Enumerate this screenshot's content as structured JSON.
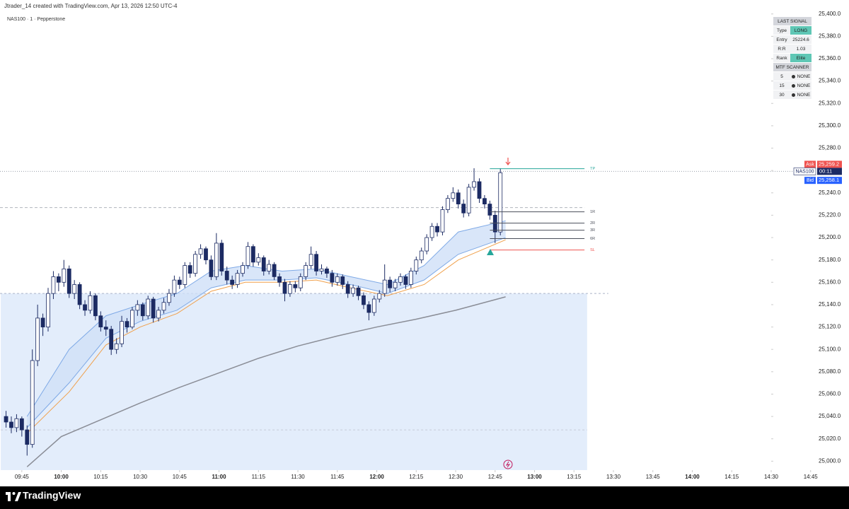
{
  "header": {
    "attribution": "Jtrader_14 created with TradingView.com, Apr 13, 2026 12:50 UTC-4",
    "symbol": "NAS100 · 1 · Pepperstone"
  },
  "chart_data": {
    "type": "candlestick",
    "x": [
      579,
      581,
      583,
      585,
      587,
      589,
      591,
      593,
      595,
      597,
      599,
      601,
      603,
      605,
      607,
      609,
      611,
      613,
      615,
      617,
      619,
      621,
      623,
      625,
      627,
      629,
      631,
      633,
      635,
      637,
      639,
      641,
      643,
      645,
      647,
      649,
      651,
      653,
      655,
      657,
      659,
      661,
      663,
      665,
      667,
      669,
      671,
      673,
      675,
      677,
      679,
      681,
      683,
      685,
      687,
      689,
      691,
      693,
      695,
      697,
      699,
      701,
      703,
      705,
      707,
      709,
      711,
      713,
      715,
      717,
      719,
      721,
      723,
      725,
      727,
      729,
      731,
      733,
      735,
      737,
      739,
      741,
      743,
      745,
      747,
      749,
      751,
      753,
      755,
      757,
      759,
      761,
      763,
      765,
      767
    ],
    "ohlc": [
      [
        25040,
        25045,
        25030,
        25035
      ],
      [
        25035,
        25040,
        25025,
        25030
      ],
      [
        25030,
        25042,
        25026,
        25038
      ],
      [
        25038,
        25040,
        25022,
        25028
      ],
      [
        25028,
        25032,
        25005,
        25015
      ],
      [
        25015,
        25100,
        25012,
        25090
      ],
      [
        25090,
        25140,
        25085,
        25128
      ],
      [
        25128,
        25132,
        25112,
        25120
      ],
      [
        25120,
        25155,
        25116,
        25150
      ],
      [
        25150,
        25170,
        25145,
        25165
      ],
      [
        25165,
        25168,
        25152,
        25160
      ],
      [
        25160,
        25180,
        25156,
        25172
      ],
      [
        25172,
        25175,
        25146,
        25150
      ],
      [
        25150,
        25162,
        25145,
        25158
      ],
      [
        25158,
        25160,
        25136,
        25140
      ],
      [
        25140,
        25144,
        25130,
        25135
      ],
      [
        25135,
        25152,
        25132,
        25148
      ],
      [
        25148,
        25150,
        25126,
        25130
      ],
      [
        25130,
        25134,
        25116,
        25120
      ],
      [
        25120,
        25126,
        25112,
        25118
      ],
      [
        25118,
        25121,
        25095,
        25100
      ],
      [
        25100,
        25110,
        25096,
        25105
      ],
      [
        25105,
        25130,
        25102,
        25125
      ],
      [
        25125,
        25128,
        25115,
        25120
      ],
      [
        25120,
        25138,
        25118,
        25135
      ],
      [
        25135,
        25144,
        25130,
        25140
      ],
      [
        25140,
        25142,
        25126,
        25130
      ],
      [
        25130,
        25148,
        25127,
        25145
      ],
      [
        25145,
        25147,
        25124,
        25128
      ],
      [
        25128,
        25138,
        25125,
        25135
      ],
      [
        25135,
        25146,
        25132,
        25142
      ],
      [
        25142,
        25154,
        25139,
        25150
      ],
      [
        25150,
        25166,
        25147,
        25162
      ],
      [
        25162,
        25165,
        25154,
        25158
      ],
      [
        25158,
        25178,
        25155,
        25175
      ],
      [
        25175,
        25178,
        25164,
        25168
      ],
      [
        25168,
        25188,
        25165,
        25185
      ],
      [
        25185,
        25194,
        25181,
        25190
      ],
      [
        25190,
        25192,
        25176,
        25180
      ],
      [
        25180,
        25184,
        25162,
        25165
      ],
      [
        25165,
        25204,
        25162,
        25195
      ],
      [
        25195,
        25198,
        25166,
        25170
      ],
      [
        25170,
        25174,
        25158,
        25162
      ],
      [
        25162,
        25166,
        25154,
        25158
      ],
      [
        25158,
        25171,
        25155,
        25168
      ],
      [
        25168,
        25178,
        25165,
        25175
      ],
      [
        25175,
        25196,
        25172,
        25192
      ],
      [
        25192,
        25194,
        25174,
        25178
      ],
      [
        25178,
        25186,
        25175,
        25182
      ],
      [
        25182,
        25184,
        25166,
        25170
      ],
      [
        25170,
        25180,
        25167,
        25176
      ],
      [
        25176,
        25178,
        25162,
        25165
      ],
      [
        25165,
        25168,
        25156,
        25160
      ],
      [
        25160,
        25163,
        25143,
        25150
      ],
      [
        25150,
        25161,
        25147,
        25158
      ],
      [
        25158,
        25161,
        25151,
        25155
      ],
      [
        25155,
        25168,
        25152,
        25165
      ],
      [
        25165,
        25178,
        25162,
        25175
      ],
      [
        25175,
        25192,
        25172,
        25185
      ],
      [
        25185,
        25188,
        25166,
        25170
      ],
      [
        25170,
        25176,
        25167,
        25172
      ],
      [
        25172,
        25174,
        25164,
        25168
      ],
      [
        25168,
        25171,
        25156,
        25160
      ],
      [
        25160,
        25168,
        25157,
        25165
      ],
      [
        25165,
        25167,
        25154,
        25158
      ],
      [
        25158,
        25161,
        25146,
        25150
      ],
      [
        25150,
        25158,
        25147,
        25155
      ],
      [
        25155,
        25157,
        25144,
        25148
      ],
      [
        25148,
        25151,
        25136,
        25140
      ],
      [
        25140,
        25143,
        25126,
        25133
      ],
      [
        25133,
        25148,
        25130,
        25145
      ],
      [
        25145,
        25153,
        25142,
        25150
      ],
      [
        25150,
        25176,
        25147,
        25162
      ],
      [
        25162,
        25165,
        25151,
        25155
      ],
      [
        25155,
        25163,
        25152,
        25160
      ],
      [
        25160,
        25168,
        25157,
        25165
      ],
      [
        25165,
        25167,
        25154,
        25158
      ],
      [
        25158,
        25173,
        25155,
        25170
      ],
      [
        25170,
        25183,
        25167,
        25180
      ],
      [
        25180,
        25191,
        25177,
        25188
      ],
      [
        25188,
        25203,
        25185,
        25200
      ],
      [
        25200,
        25213,
        25197,
        25210
      ],
      [
        25210,
        25213,
        25201,
        25205
      ],
      [
        25205,
        25228,
        25202,
        25225
      ],
      [
        25225,
        25238,
        25222,
        25235
      ],
      [
        25235,
        25245,
        25232,
        25240
      ],
      [
        25240,
        25243,
        25226,
        25230
      ],
      [
        25230,
        25234,
        25218,
        25222
      ],
      [
        25222,
        25248,
        25219,
        25245
      ],
      [
        25245,
        25262,
        25242,
        25250
      ],
      [
        25250,
        25253,
        25231,
        25235
      ],
      [
        25235,
        25238,
        25226,
        25230
      ],
      [
        25230,
        25233,
        25216,
        25220
      ],
      [
        25220,
        25224,
        25195,
        25205
      ],
      [
        25205,
        25262,
        25202,
        25258
      ]
    ],
    "up_color": "#ffffff",
    "down_color": "#1c2b63",
    "xlim": [
      576.7,
      870
    ],
    "ylim": [
      24992,
      25403
    ],
    "xticks": [
      {
        "value": 585,
        "label": "09:45"
      },
      {
        "value": 600,
        "label": "10:00"
      },
      {
        "value": 615,
        "label": "10:15"
      },
      {
        "value": 630,
        "label": "10:30"
      },
      {
        "value": 645,
        "label": "10:45"
      },
      {
        "value": 660,
        "label": "11:00"
      },
      {
        "value": 675,
        "label": "11:15"
      },
      {
        "value": 690,
        "label": "11:30"
      },
      {
        "value": 705,
        "label": "11:45"
      },
      {
        "value": 720,
        "label": "12:00"
      },
      {
        "value": 735,
        "label": "12:15"
      },
      {
        "value": 750,
        "label": "12:30"
      },
      {
        "value": 765,
        "label": "12:45"
      },
      {
        "value": 780,
        "label": "13:00"
      },
      {
        "value": 795,
        "label": "13:15"
      },
      {
        "value": 810,
        "label": "13:30"
      },
      {
        "value": 825,
        "label": "13:45"
      },
      {
        "value": 840,
        "label": "14:00"
      },
      {
        "value": 855,
        "label": "14:15"
      },
      {
        "value": 870,
        "label": "14:30"
      },
      {
        "value": 885,
        "label": "14:45"
      }
    ],
    "yticks": [
      {
        "value": 25400,
        "label": "25,400.0"
      },
      {
        "value": 25380,
        "label": "25,380.0"
      },
      {
        "value": 25360,
        "label": "25,360.0"
      },
      {
        "value": 25340,
        "label": "25,340.0"
      },
      {
        "value": 25320,
        "label": "25,320.0"
      },
      {
        "value": 25300,
        "label": "25,300.0"
      },
      {
        "value": 25280,
        "label": "25,280.0"
      },
      {
        "value": 25260,
        "label": "25,260.0"
      },
      {
        "value": 25240,
        "label": "25,240.0"
      },
      {
        "value": 25220,
        "label": "25,220.0"
      },
      {
        "value": 25200,
        "label": "25,200.0"
      },
      {
        "value": 25180,
        "label": "25,180.0"
      },
      {
        "value": 25160,
        "label": "25,160.0"
      },
      {
        "value": 25140,
        "label": "25,140.0"
      },
      {
        "value": 25120,
        "label": "25,120.0"
      },
      {
        "value": 25100,
        "label": "25,100.0"
      },
      {
        "value": 25080,
        "label": "25,080.0"
      },
      {
        "value": 25060,
        "label": "25,060.0"
      },
      {
        "value": 25040,
        "label": "25,040.0"
      },
      {
        "value": 25020,
        "label": "25,020.0"
      },
      {
        "value": 25000,
        "label": "25,000.0"
      }
    ],
    "lines": [
      {
        "color": "#7ea9e6",
        "x": [
          587,
          603,
          617,
          630,
          644,
          657,
          670,
          684,
          697,
          710,
          724,
          738,
          751,
          769
        ],
        "values": [
          25040,
          25100,
          25130,
          25140,
          25150,
          25170,
          25175,
          25170,
          25172,
          25165,
          25158,
          25175,
          25205,
          25215
        ]
      },
      {
        "color": "#7ea9e6",
        "x": [
          587,
          603,
          617,
          630,
          644,
          657,
          670,
          684,
          697,
          710,
          724,
          738,
          751,
          769
        ],
        "values": [
          25030,
          25070,
          25110,
          25125,
          25135,
          25155,
          25162,
          25162,
          25164,
          25158,
          25150,
          25162,
          25185,
          25200
        ]
      },
      {
        "color": "#f0a04b",
        "x": [
          587,
          603,
          617,
          630,
          644,
          657,
          670,
          684,
          697,
          710,
          724,
          738,
          751,
          769
        ],
        "values": [
          25025,
          25062,
          25104,
          25120,
          25132,
          25152,
          25160,
          25160,
          25162,
          25155,
          25148,
          25158,
          25180,
          25198
        ]
      },
      {
        "color": "#8a8d96",
        "x": [
          587,
          600,
          615,
          630,
          645,
          660,
          675,
          690,
          705,
          720,
          735,
          750,
          769
        ],
        "values": [
          24995,
          25022,
          25037,
          25052,
          25066,
          25079,
          25092,
          25103,
          25112,
          25120,
          25127,
          25135,
          25147
        ]
      }
    ],
    "band_color": "#cfe0f7",
    "levels_x": [
      763,
      799
    ],
    "levels": [
      {
        "label": "TP",
        "value": 25261.6,
        "color": "#26a69a"
      },
      {
        "label": "1R",
        "value": 25223,
        "color": "#4a4e5a"
      },
      {
        "label": "2R",
        "value": 25212.9,
        "color": "#4a4e5a"
      },
      {
        "label": "3R",
        "value": 25206.6,
        "color": "#4a4e5a"
      },
      {
        "label": "6R",
        "value": 25199.1,
        "color": "#4a4e5a"
      },
      {
        "label": "SL",
        "value": 25188.9,
        "color": "#ef5350"
      }
    ],
    "entry_line": 25226.8,
    "zone": {
      "top": 25150,
      "mid": 25028,
      "x": [
        577,
        800
      ],
      "color": "#e3edfb"
    },
    "ask": {
      "text": "Ask",
      "value": 25259.2,
      "label": "25,259.2",
      "color": "#ef5350"
    },
    "countdown": {
      "symbol": "NAS100",
      "time": "00:11",
      "color": "#1c2b63"
    },
    "bid": {
      "text": "Bid",
      "value": 25258.1,
      "label": "25,258.1",
      "color": "#2962ff"
    }
  },
  "signal_table": {
    "title": "LAST SIGNAL",
    "rows": [
      [
        "Type",
        "LONG"
      ],
      [
        "Entry",
        "25224.6"
      ],
      [
        "R:R",
        "1.03"
      ],
      [
        "Rank",
        "Elite"
      ]
    ],
    "scanner_title": "MTF SCANNER",
    "scanner_rows": [
      [
        "5",
        "NONE"
      ],
      [
        "15",
        "NONE"
      ],
      [
        "30",
        "NONE"
      ]
    ]
  },
  "footer": {
    "brand": "TradingView"
  }
}
